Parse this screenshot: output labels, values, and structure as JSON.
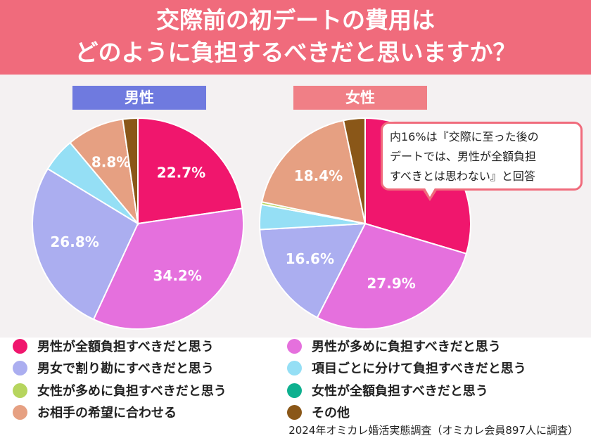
{
  "title": {
    "line1": "交際前の初デートの費用は",
    "line2": "どのように負担するべきだと思いますか？"
  },
  "callout": {
    "line1": "内16%は『交際に至った後の",
    "line2": "デートでは、男性が全額負担",
    "line3": "すべきとは思わない』と回答"
  },
  "footer": "2024年オミカレ婚活実態調査（オミカレ会員897人に調査）",
  "legend": [
    {
      "label": "男性が全額負担すべきだと思う",
      "color": "#f0166d"
    },
    {
      "label": "男性が多めに負担すべきだと思う",
      "color": "#e570dd"
    },
    {
      "label": "男女で割り勘にすべきだと思う",
      "color": "#abaef0"
    },
    {
      "label": "項目ごとに分けて負担すべきだと思う",
      "color": "#95dff5"
    },
    {
      "label": "女性が多めに負担すべきだと思う",
      "color": "#b6d55e"
    },
    {
      "label": "女性が全額負担すべきだと思う",
      "color": "#0eb08f"
    },
    {
      "label": "お相手の希望に合わせる",
      "color": "#e6a082"
    },
    {
      "label": "その他",
      "color": "#8a5718"
    }
  ],
  "chart_data": [
    {
      "type": "pie",
      "title": "男性",
      "categories": [
        "男性が全額負担すべきだと思う",
        "男性が多めに負担すべきだと思う",
        "男女で割り勘にすべきだと思う",
        "項目ごとに分けて負担すべきだと思う",
        "女性が多めに負担すべきだと思う",
        "女性が全額負担すべきだと思う",
        "お相手の希望に合わせる",
        "その他"
      ],
      "values": [
        22.7,
        34.2,
        26.8,
        5.2,
        0,
        0,
        8.8,
        2.3
      ],
      "data_labels": [
        "22.7%",
        "34.2%",
        "26.8%",
        "",
        "",
        "",
        "8.8%",
        ""
      ],
      "colors": [
        "#f0166d",
        "#e570dd",
        "#abaef0",
        "#95dff5",
        "#b6d55e",
        "#0eb08f",
        "#e6a082",
        "#8a5718"
      ]
    },
    {
      "type": "pie",
      "title": "女性",
      "categories": [
        "男性が全額負担すべきだと思う",
        "男性が多めに負担すべきだと思う",
        "男女で割り勘にすべきだと思う",
        "項目ごとに分けて負担すべきだと思う",
        "女性が多めに負担すべきだと思う",
        "女性が全額負担すべきだと思う",
        "お相手の希望に合わせる",
        "その他"
      ],
      "values": [
        29.6,
        27.9,
        16.6,
        3.8,
        0.4,
        0,
        18.4,
        3.3
      ],
      "data_labels": [
        "29.6%",
        "27.9%",
        "16.6%",
        "",
        "",
        "",
        "18.4%",
        ""
      ],
      "colors": [
        "#f0166d",
        "#e570dd",
        "#abaef0",
        "#95dff5",
        "#b6d55e",
        "#0eb08f",
        "#e6a082",
        "#8a5718"
      ]
    }
  ]
}
